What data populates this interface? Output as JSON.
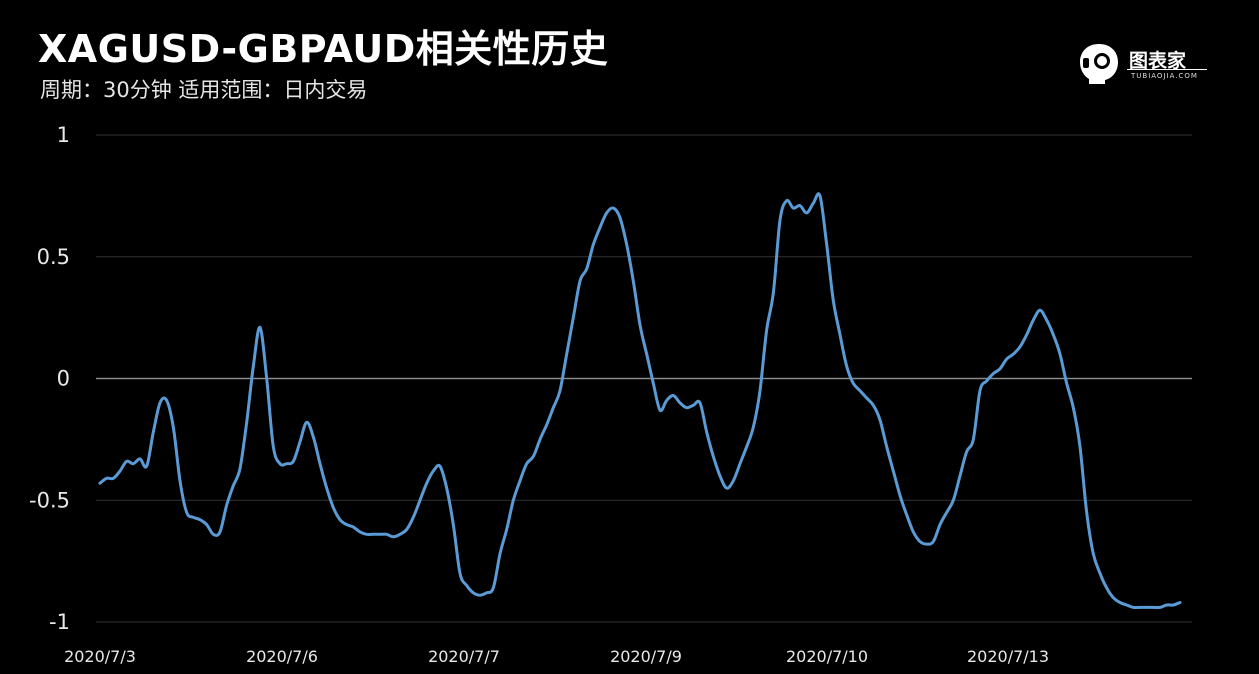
{
  "header": {
    "title": "XAGUSD-GBPAUD相关性历史",
    "subtitle": "周期：30分钟  适用范围：日内交易"
  },
  "logo": {
    "name": "图表家",
    "sub": "TUBIAOJIA.COM"
  },
  "colors": {
    "background": "#000000",
    "line": "#5b9bd5",
    "grid": "#333333",
    "zero_line": "#8a8a8a"
  },
  "chart_data": {
    "type": "line",
    "title": "XAGUSD-GBPAUD相关性历史",
    "ylim": [
      -1,
      1
    ],
    "y_ticks": [
      "1",
      "0.5",
      "0",
      "-0.5",
      "-1"
    ],
    "x_tick_labels": [
      "2020/7/3",
      "2020/7/6",
      "2020/7/7",
      "2020/7/9",
      "2020/7/10",
      "2020/7/13"
    ],
    "grid": true,
    "legend": "none",
    "series": [
      {
        "values": [
          -0.43,
          -0.41,
          -0.41,
          -0.38,
          -0.34,
          -0.35,
          -0.33,
          -0.36,
          -0.22,
          -0.1,
          -0.09,
          -0.2,
          -0.42,
          -0.55,
          -0.57,
          -0.58,
          -0.6,
          -0.64,
          -0.63,
          -0.52,
          -0.44,
          -0.37,
          -0.18,
          0.05,
          0.21,
          0.0,
          -0.28,
          -0.35,
          -0.35,
          -0.34,
          -0.26,
          -0.18,
          -0.24,
          -0.35,
          -0.45,
          -0.53,
          -0.58,
          -0.6,
          -0.61,
          -0.63,
          -0.64,
          -0.64,
          -0.64,
          -0.64,
          -0.65,
          -0.64,
          -0.62,
          -0.57,
          -0.5,
          -0.43,
          -0.38,
          -0.36,
          -0.45,
          -0.6,
          -0.8,
          -0.85,
          -0.88,
          -0.89,
          -0.88,
          -0.86,
          -0.72,
          -0.62,
          -0.5,
          -0.42,
          -0.35,
          -0.32,
          -0.25,
          -0.19,
          -0.12,
          -0.05,
          0.1,
          0.25,
          0.4,
          0.45,
          0.55,
          0.62,
          0.68,
          0.7,
          0.66,
          0.55,
          0.4,
          0.22,
          0.1,
          -0.02,
          -0.13,
          -0.09,
          -0.07,
          -0.1,
          -0.12,
          -0.11,
          -0.1,
          -0.22,
          -0.32,
          -0.4,
          -0.45,
          -0.42,
          -0.35,
          -0.28,
          -0.2,
          -0.05,
          0.2,
          0.35,
          0.65,
          0.73,
          0.7,
          0.71,
          0.68,
          0.72,
          0.75,
          0.55,
          0.32,
          0.18,
          0.05,
          -0.02,
          -0.05,
          -0.08,
          -0.11,
          -0.17,
          -0.28,
          -0.38,
          -0.48,
          -0.56,
          -0.63,
          -0.67,
          -0.68,
          -0.67,
          -0.6,
          -0.55,
          -0.5,
          -0.4,
          -0.3,
          -0.25,
          -0.05,
          -0.01,
          0.02,
          0.04,
          0.08,
          0.1,
          0.13,
          0.18,
          0.24,
          0.28,
          0.24,
          0.18,
          0.1,
          -0.02,
          -0.12,
          -0.28,
          -0.55,
          -0.72,
          -0.8,
          -0.86,
          -0.9,
          -0.92,
          -0.93,
          -0.94,
          -0.94,
          -0.94,
          -0.94,
          -0.94,
          -0.93,
          -0.93,
          -0.92
        ]
      }
    ]
  }
}
